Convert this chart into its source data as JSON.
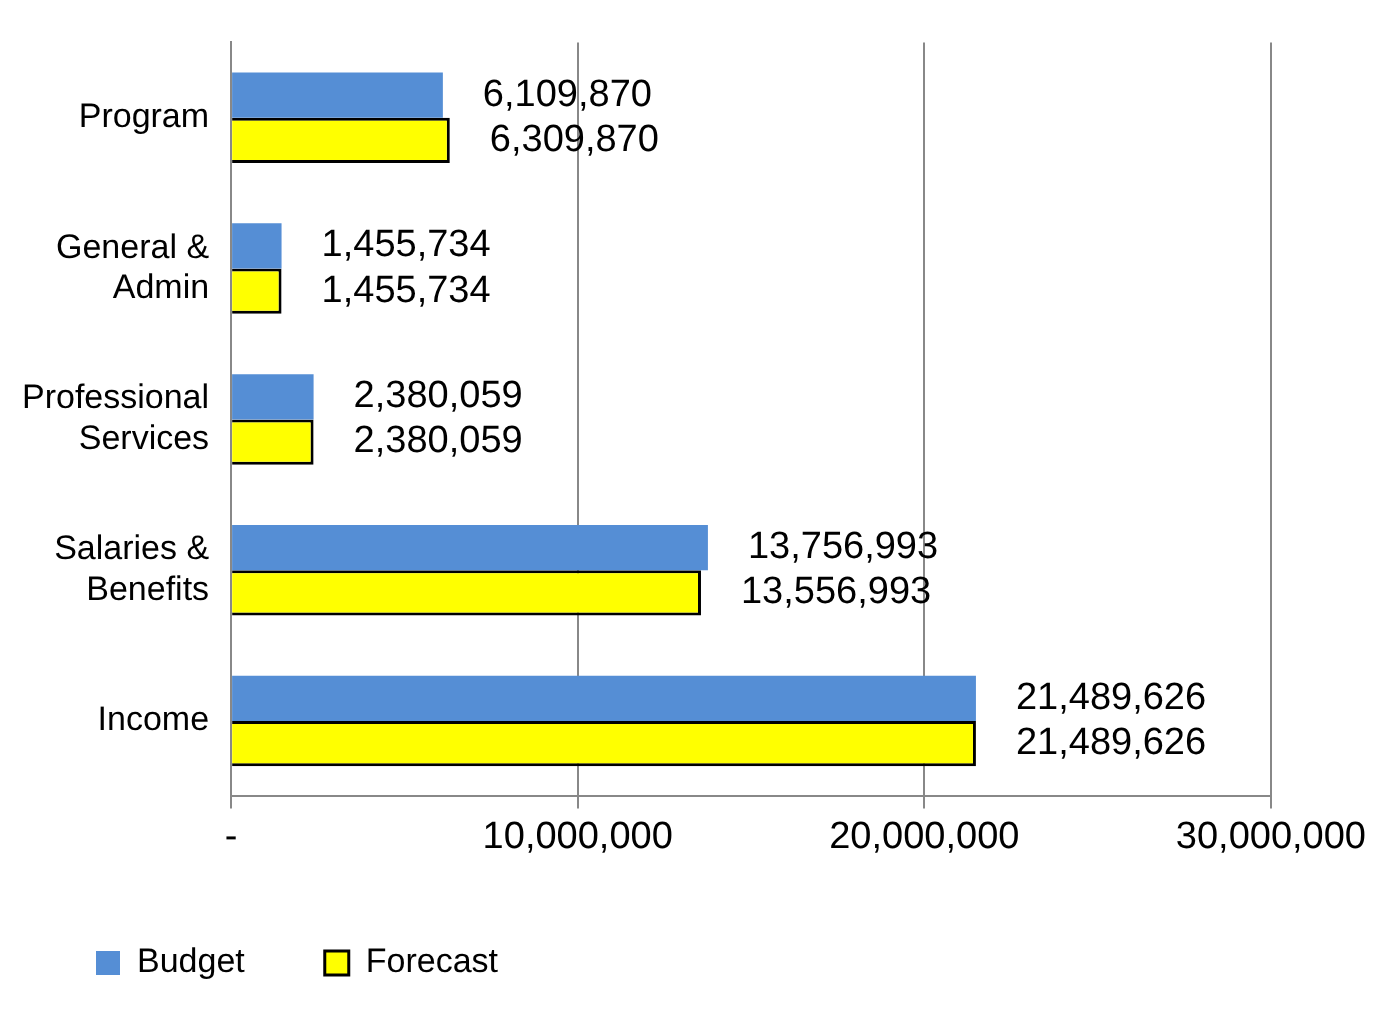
{
  "chart_data": {
    "type": "bar",
    "orientation": "horizontal",
    "categories": [
      "Program",
      "General & Admin",
      "Professional Services",
      "Salaries & Benefits",
      "Income"
    ],
    "series": [
      {
        "name": "Budget",
        "color": "#558ed5",
        "values": [
          6109870,
          1455734,
          2380059,
          13756993,
          21489626
        ],
        "value_labels": [
          "6,109,870",
          "1,455,734",
          "2,380,059",
          "13,756,993",
          "21,489,626"
        ]
      },
      {
        "name": "Forecast",
        "color": "#ffff00",
        "values": [
          6309870,
          1455734,
          2380059,
          13556993,
          21489626
        ],
        "value_labels": [
          "6,309,870",
          "1,455,734",
          "2,380,059",
          "13,556,993",
          "21,489,626"
        ]
      }
    ],
    "xlim": [
      0,
      30000000
    ],
    "xticks": [
      {
        "value": 0,
        "label": "-"
      },
      {
        "value": 10000000,
        "label": "10,000,000"
      },
      {
        "value": 20000000,
        "label": "20,000,000"
      },
      {
        "value": 30000000,
        "label": "30,000,000"
      }
    ],
    "grid": "x",
    "legend": "bottom left"
  }
}
